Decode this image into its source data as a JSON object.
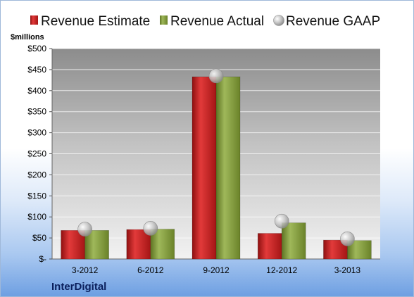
{
  "chart_data": {
    "type": "bar",
    "ylabel": "$millions",
    "company": "InterDigital",
    "ylim": [
      0,
      500
    ],
    "y_ticks": [
      0,
      50,
      100,
      150,
      200,
      250,
      300,
      350,
      400,
      450,
      500
    ],
    "y_tick_labels": [
      "$-",
      "$50",
      "$100",
      "$150",
      "$200",
      "$250",
      "$300",
      "$350",
      "$400",
      "$450",
      "$500"
    ],
    "categories": [
      "3-2012",
      "6-2012",
      "9-2012",
      "12-2012",
      "3-2013"
    ],
    "series": [
      {
        "name": "Revenue Estimate",
        "kind": "bar",
        "color": "#cc1f1f",
        "values": [
          68,
          70,
          433,
          61,
          45
        ]
      },
      {
        "name": "Revenue Actual",
        "kind": "bar",
        "color": "#7f9a3b",
        "values": [
          68,
          71,
          433,
          86,
          44
        ]
      },
      {
        "name": "Revenue GAAP",
        "kind": "marker",
        "color": "#b8b8b8",
        "values": [
          71,
          73,
          435,
          90,
          48
        ]
      }
    ],
    "legend_position": "top",
    "grid": true
  }
}
